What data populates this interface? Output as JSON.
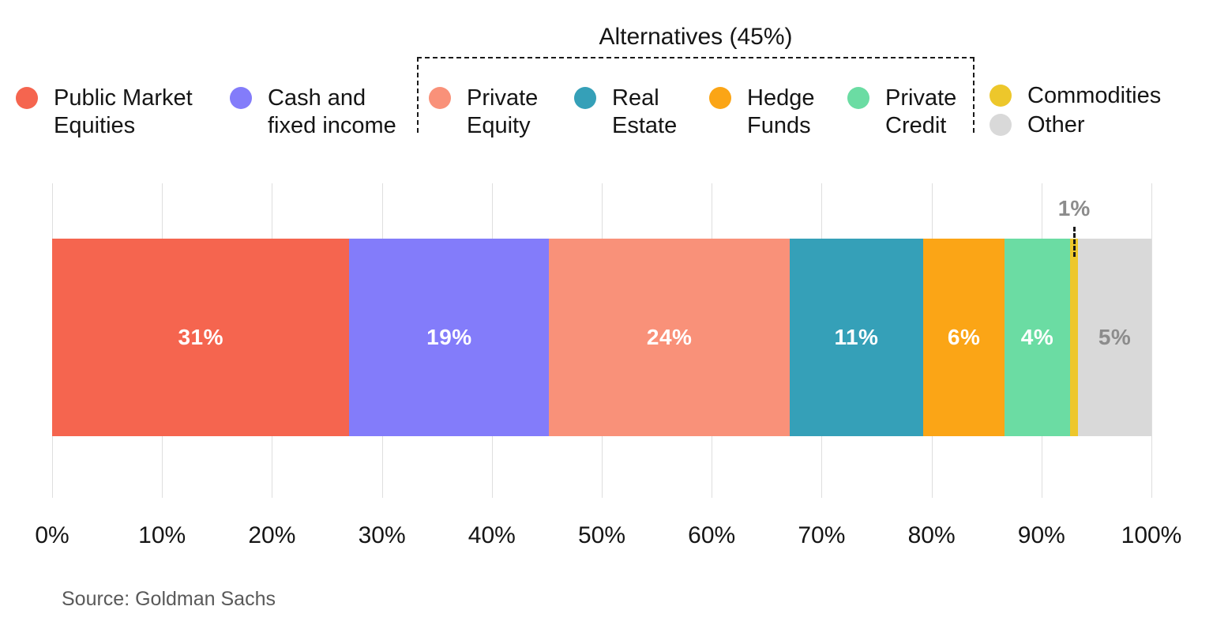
{
  "alternatives": {
    "title": "Alternatives (45%)"
  },
  "legend": {
    "items": [
      {
        "label": "Public Market\nEquities",
        "color": "#F5654F"
      },
      {
        "label": "Cash and\nfixed income",
        "color": "#837CFA"
      },
      {
        "label": "Private\nEquity",
        "color": "#F99179"
      },
      {
        "label": "Real\nEstate",
        "color": "#35A0B8"
      },
      {
        "label": "Hedge\nFunds",
        "color": "#FBA516"
      },
      {
        "label": "Private\nCredit",
        "color": "#6BDCA3"
      },
      {
        "label": "Commodities",
        "color": "#EDC72B"
      },
      {
        "label": "Other",
        "color": "#D9D9D9"
      }
    ]
  },
  "chart_data": {
    "type": "bar",
    "orientation": "horizontal",
    "stacked": true,
    "unit": "%",
    "categories": [
      "Public Market Equities",
      "Cash and fixed income",
      "Private Equity",
      "Real Estate",
      "Hedge Funds",
      "Private Credit",
      "Commodities",
      "Other"
    ],
    "values": [
      31,
      19,
      24,
      11,
      6,
      4,
      1,
      5
    ],
    "segment_labels": [
      "31%",
      "19%",
      "24%",
      "11%",
      "6%",
      "4%",
      "1%",
      "5%"
    ],
    "segment_colors": [
      "#F5654F",
      "#837CFA",
      "#F99179",
      "#35A0B8",
      "#FBA516",
      "#6BDCA3",
      "#EDC72B",
      "#D9D9D9"
    ],
    "label_colors": [
      "#FFFFFF",
      "#FFFFFF",
      "#FFFFFF",
      "#FFFFFF",
      "#FFFFFF",
      "#FFFFFF",
      "#8C8C8C",
      "#8C8C8C"
    ],
    "label_positions": [
      "inside",
      "inside",
      "inside",
      "inside",
      "inside",
      "inside",
      "above",
      "inside"
    ],
    "x_ticks": [
      "0%",
      "10%",
      "20%",
      "30%",
      "40%",
      "50%",
      "60%",
      "70%",
      "80%",
      "90%",
      "100%"
    ],
    "xlim": [
      0,
      100
    ],
    "grid": true,
    "legend_position": "top",
    "annotation": {
      "text": "Alternatives (45%)",
      "covers": [
        "Private Equity",
        "Real Estate",
        "Hedge Funds",
        "Private Credit"
      ],
      "total_value": 45
    }
  },
  "colors": {
    "background": "#FFFFFF",
    "grid": "#DEDEDE",
    "text": "#151515",
    "muted_label": "#8C8C8C",
    "source_text": "#595959",
    "bracket": "#1A1A1A"
  },
  "source": "Source: Goldman Sachs"
}
